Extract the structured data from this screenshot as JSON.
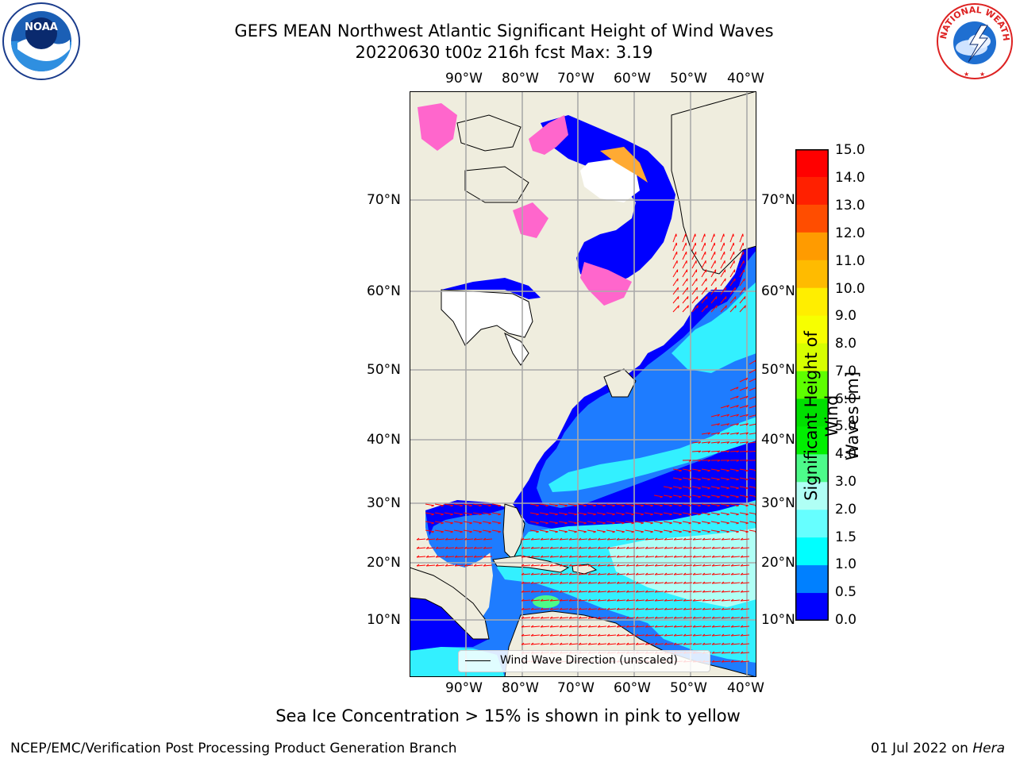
{
  "title": "GEFS MEAN Northwest Atlantic Significant Height of Wind Waves",
  "subtitle": "20220630 t00z 216h fcst   Max: 3.19",
  "logos": {
    "left": "NOAA",
    "right": "NATIONAL WEATHER SERVICE"
  },
  "lon_ticks": [
    "90°W",
    "80°W",
    "70°W",
    "60°W",
    "50°W",
    "40°W"
  ],
  "lat_ticks": [
    "70°N",
    "60°N",
    "50°N",
    "40°N",
    "30°N",
    "20°N",
    "10°N"
  ],
  "legend_label": "Wind Wave Direction (unscaled)",
  "colorbar": {
    "title": "Significant Height of Wind Waves [m]",
    "title_line1": "Significant Height of Wind",
    "title_line2": "Waves [m]",
    "ticks": [
      "15.0",
      "14.0",
      "13.0",
      "12.0",
      "11.0",
      "10.0",
      "9.0",
      "8.0",
      "7.0",
      "6.0",
      "5.0",
      "4.0",
      "3.0",
      "2.0",
      "1.5",
      "1.0",
      "0.5",
      "0.0"
    ],
    "colors": [
      "#ff0000",
      "#ff2000",
      "#ff4d00",
      "#ff7a00",
      "#ff9b00",
      "#ffbb00",
      "#ffee00",
      "#f7ff00",
      "#d7ff00",
      "#b6ff00",
      "#5eff00",
      "#00e000",
      "#00f000",
      "#4dfb8a",
      "#b0fff5",
      "#66ffff",
      "#33ffff",
      "#00ffff",
      "#0080ff",
      "#0000ff"
    ]
  },
  "footer_note": "Sea Ice Concentration > 15% is shown in pink to yellow",
  "credit": "NCEP/EMC/Verification Post Processing Product Generation Branch",
  "date": "01 Jul 2022 on",
  "host": "Hera",
  "colors": {
    "land": "#efedde",
    "ocean_low": "#0000ff",
    "ocean_mid": "#1e7cff",
    "ocean_high": "#33f0ff",
    "ice": "#ff66cc",
    "arrows": "#ff0000"
  }
}
